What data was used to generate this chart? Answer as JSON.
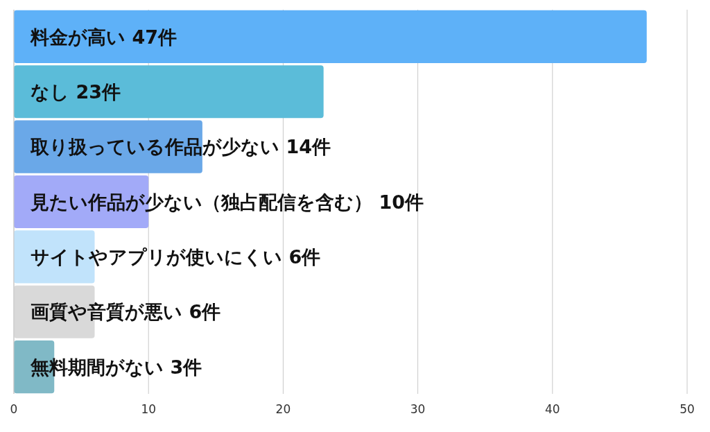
{
  "chart_data": {
    "type": "bar",
    "orientation": "horizontal",
    "categories": [
      "料金が高い",
      "なし",
      "取り扱っている作品が少ない",
      "見たい作品が少ない（独占配信を含む）",
      "サイトやアプリが使いにくい",
      "画質や音質が悪い",
      "無料期間がない"
    ],
    "values": [
      47,
      23,
      14,
      10,
      6,
      6,
      3
    ],
    "value_labels": [
      "47件",
      "23件",
      "14件",
      "10件",
      "6件",
      "6件",
      "3件"
    ],
    "colors": [
      "#5eb1f8",
      "#5bbcd9",
      "#6aa8e8",
      "#a2aaf8",
      "#c1e3fb",
      "#d9d9d9",
      "#80b9c6"
    ],
    "xlim": [
      0,
      50
    ],
    "xticks": [
      0,
      10,
      20,
      30,
      40,
      50
    ],
    "grid": "x"
  }
}
